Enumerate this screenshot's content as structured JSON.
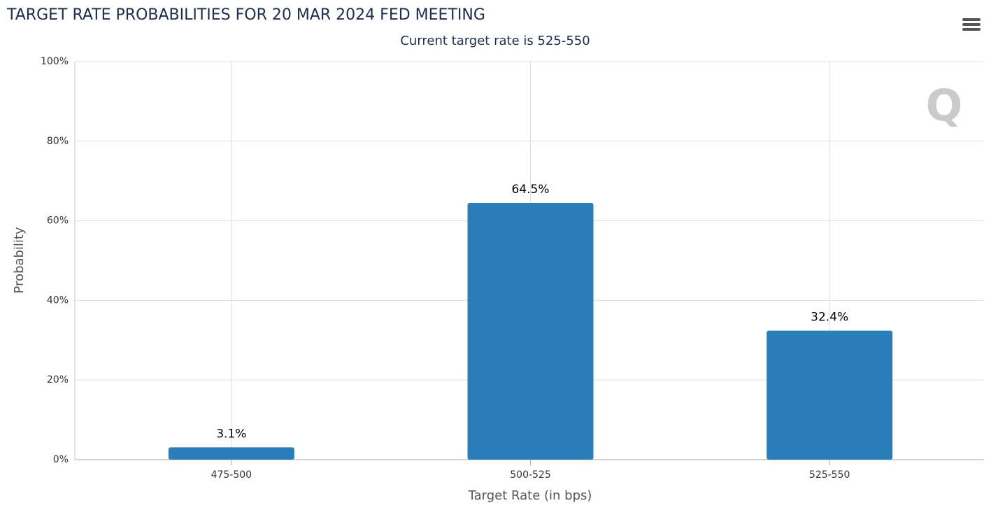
{
  "chart_data": {
    "type": "bar",
    "title": "TARGET RATE PROBABILITIES FOR 20 MAR 2024 FED MEETING",
    "subtitle": "Current target rate is 525-550",
    "x_label": "Target Rate (in bps)",
    "y_label": "Probability",
    "categories": [
      "475-500",
      "500-525",
      "525-550"
    ],
    "values": [
      3.1,
      64.5,
      32.4
    ],
    "value_labels": [
      "3.1%",
      "64.5%",
      "32.4%"
    ],
    "color": "#2a7fb8",
    "ylim": [
      0,
      100
    ],
    "yticks": [
      {
        "value": 0,
        "label": "0%"
      },
      {
        "value": 20,
        "label": "20%"
      },
      {
        "value": 40,
        "label": "40%"
      },
      {
        "value": 60,
        "label": "60%"
      },
      {
        "value": 80,
        "label": "80%"
      },
      {
        "value": 100,
        "label": "100%"
      }
    ],
    "grid": true
  }
}
